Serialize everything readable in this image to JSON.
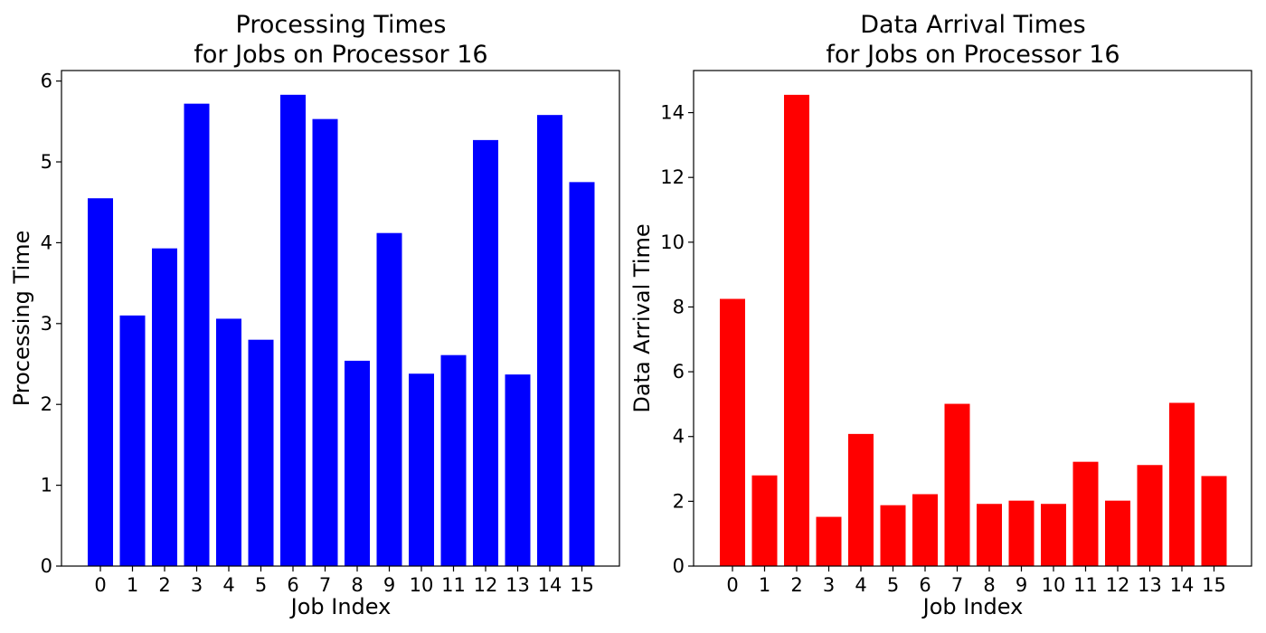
{
  "chart_data": [
    {
      "type": "bar",
      "title": [
        "Processing Times",
        "for Jobs on Processor 16"
      ],
      "xlabel": "Job Index",
      "ylabel": "Processing Time",
      "categories": [
        "0",
        "1",
        "2",
        "3",
        "4",
        "5",
        "6",
        "7",
        "8",
        "9",
        "10",
        "11",
        "12",
        "13",
        "14",
        "15"
      ],
      "values": [
        4.55,
        3.1,
        3.93,
        5.72,
        3.06,
        2.8,
        5.83,
        5.53,
        2.54,
        4.12,
        2.38,
        2.61,
        5.27,
        2.37,
        5.58,
        4.75
      ],
      "ylim": [
        0,
        6.13
      ],
      "yticks": [
        0,
        1,
        2,
        3,
        4,
        5,
        6
      ],
      "color": "#0000ff",
      "grid": false
    },
    {
      "type": "bar",
      "title": [
        "Data Arrival Times",
        "for Jobs on Processor 16"
      ],
      "xlabel": "Job Index",
      "ylabel": "Data Arrival Time",
      "categories": [
        "0",
        "1",
        "2",
        "3",
        "4",
        "5",
        "6",
        "7",
        "8",
        "9",
        "10",
        "11",
        "12",
        "13",
        "14",
        "15"
      ],
      "values": [
        8.25,
        2.8,
        14.55,
        1.52,
        4.08,
        1.88,
        2.22,
        5.01,
        1.92,
        2.02,
        1.92,
        3.22,
        2.02,
        3.12,
        5.04,
        2.78
      ],
      "ylim": [
        0,
        15.3
      ],
      "yticks": [
        0,
        2,
        4,
        6,
        8,
        10,
        12,
        14
      ],
      "color": "#ff0000",
      "grid": false
    }
  ]
}
